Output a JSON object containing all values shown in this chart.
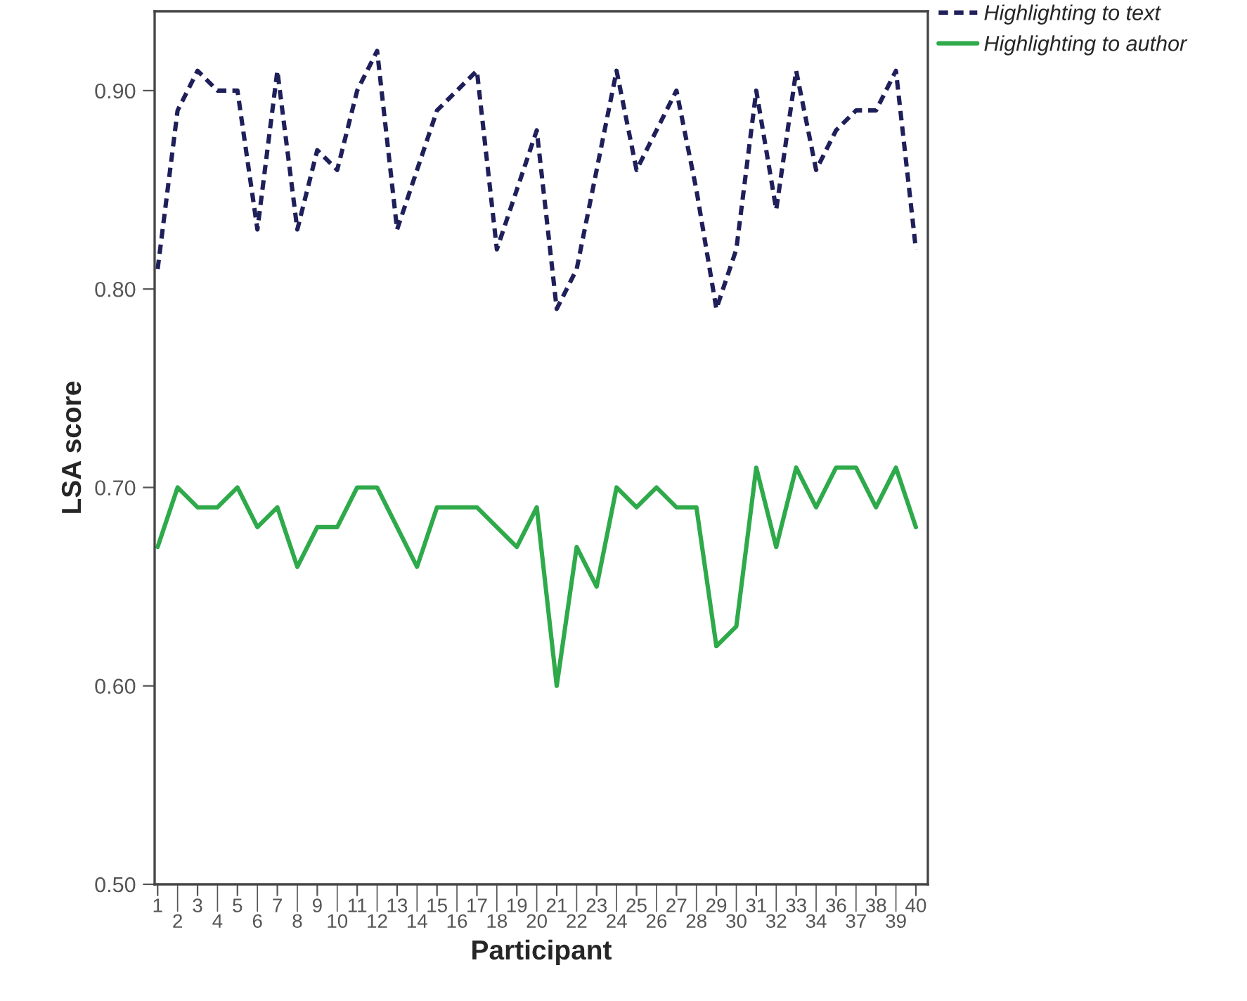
{
  "chart_data": {
    "type": "line",
    "xlabel": "Participant",
    "ylabel": "LSA score",
    "categories": [
      "1",
      "2",
      "3",
      "4",
      "5",
      "6",
      "7",
      "8",
      "9",
      "10",
      "11",
      "12",
      "13",
      "14",
      "15",
      "16",
      "17",
      "18",
      "19",
      "20",
      "21",
      "22",
      "23",
      "24",
      "25",
      "26",
      "27",
      "28",
      "29",
      "30",
      "31",
      "32",
      "33",
      "34",
      "36",
      "37",
      "38",
      "39",
      "40"
    ],
    "series": [
      {
        "name": "Highlighting to text",
        "color": "#1f1f5a",
        "line_style": "dashed",
        "values": [
          0.81,
          0.89,
          0.91,
          0.9,
          0.9,
          0.83,
          0.91,
          0.83,
          0.87,
          0.86,
          0.9,
          0.92,
          0.83,
          0.86,
          0.89,
          0.9,
          0.91,
          0.82,
          0.85,
          0.88,
          0.79,
          0.81,
          0.86,
          0.91,
          0.86,
          0.88,
          0.9,
          0.85,
          0.79,
          0.82,
          0.9,
          0.84,
          0.91,
          0.86,
          0.88,
          0.89,
          0.89,
          0.91,
          0.82
        ]
      },
      {
        "name": "Highlighting to author",
        "color": "#2eaa4a",
        "line_style": "solid",
        "values": [
          0.67,
          0.7,
          0.69,
          0.69,
          0.7,
          0.68,
          0.69,
          0.66,
          0.68,
          0.68,
          0.7,
          0.7,
          0.68,
          0.66,
          0.69,
          0.69,
          0.69,
          0.68,
          0.67,
          0.69,
          0.6,
          0.67,
          0.65,
          0.7,
          0.69,
          0.7,
          0.69,
          0.69,
          0.62,
          0.63,
          0.71,
          0.67,
          0.71,
          0.69,
          0.71,
          0.71,
          0.69,
          0.71,
          0.68
        ]
      }
    ],
    "ylim": [
      0.5,
      0.94
    ],
    "yticks": [
      {
        "value": 0.5,
        "label": "0.50"
      },
      {
        "value": 0.6,
        "label": "0.60"
      },
      {
        "value": 0.7,
        "label": "0.70"
      },
      {
        "value": 0.8,
        "label": "0.80"
      },
      {
        "value": 0.9,
        "label": "0.90"
      }
    ],
    "grid": false,
    "legend": "top right",
    "marker": "none"
  }
}
